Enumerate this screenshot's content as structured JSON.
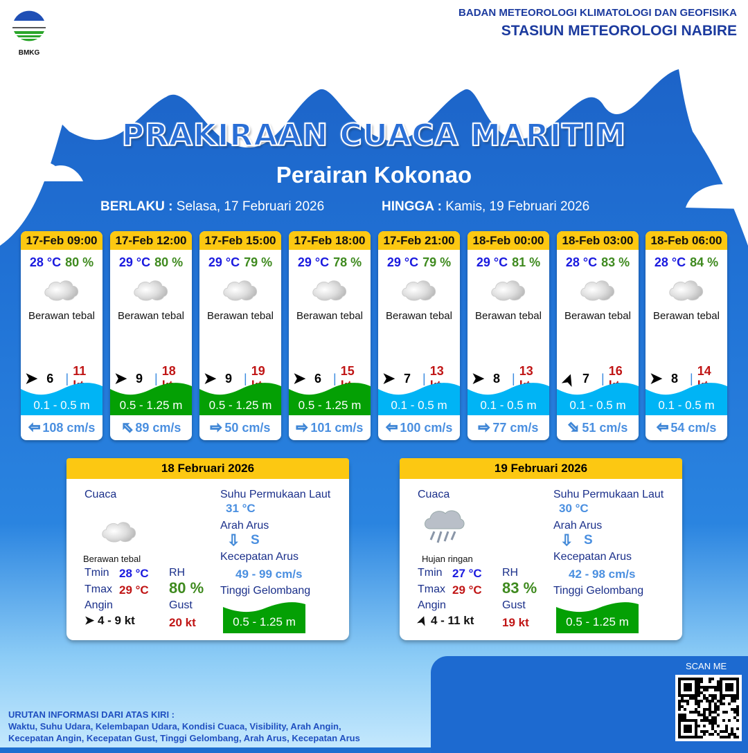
{
  "header": {
    "org": "BADAN METEOROLOGI KLIMATOLOGI DAN GEOFISIKA",
    "station": "STASIUN METEOROLOGI NABIRE",
    "logo_text": "BMKG"
  },
  "title": "PRAKIRAAN CUACA MARITIM",
  "area": "Perairan Kokonao",
  "valid": {
    "from_label": "BERLAKU :",
    "from": "Selasa, 17 Februari 2026",
    "to_label": "HINGGA :",
    "to": "Kamis, 19 Februari 2026"
  },
  "colors": {
    "wave_low": "#00b4f5",
    "wave_mid": "#04a004",
    "header": "#fcc812"
  },
  "forecasts": [
    {
      "time": "17-Feb 09:00",
      "temp": "28 °C",
      "rh": "80 %",
      "cond": "Berawan tebal",
      "wind_icon": "wind-arrow-east-icon",
      "wind_rot": 0,
      "wind": "6",
      "gust": "11 kt",
      "wave": "0.1 - 0.5 m",
      "wave_level": "low",
      "cur_icon": "arrow-left-icon",
      "cur_rot": 180,
      "cur": "108 cm/s"
    },
    {
      "time": "17-Feb 12:00",
      "temp": "29 °C",
      "rh": "80 %",
      "cond": "Berawan tebal",
      "wind_icon": "wind-arrow-east-icon",
      "wind_rot": 0,
      "wind": "9",
      "gust": "18 kt",
      "wave": "0.5 - 1.25 m",
      "wave_level": "mid",
      "cur_icon": "arrow-up-left-icon",
      "cur_rot": -135,
      "cur": "89 cm/s"
    },
    {
      "time": "17-Feb 15:00",
      "temp": "29 °C",
      "rh": "79 %",
      "cond": "Berawan tebal",
      "wind_icon": "wind-arrow-east-icon",
      "wind_rot": 0,
      "wind": "9",
      "gust": "19 kt",
      "wave": "0.5 - 1.25 m",
      "wave_level": "mid",
      "cur_icon": "arrow-right-icon",
      "cur_rot": 0,
      "cur": "50 cm/s"
    },
    {
      "time": "17-Feb 18:00",
      "temp": "29 °C",
      "rh": "78 %",
      "cond": "Berawan tebal",
      "wind_icon": "wind-arrow-east-icon",
      "wind_rot": 0,
      "wind": "6",
      "gust": "15 kt",
      "wave": "0.5 - 1.25 m",
      "wave_level": "mid",
      "cur_icon": "arrow-right-icon",
      "cur_rot": 0,
      "cur": "101 cm/s"
    },
    {
      "time": "17-Feb 21:00",
      "temp": "29 °C",
      "rh": "79 %",
      "cond": "Berawan tebal",
      "wind_icon": "wind-arrow-east-icon",
      "wind_rot": 0,
      "wind": "7",
      "gust": "13 kt",
      "wave": "0.1 - 0.5 m",
      "wave_level": "low",
      "cur_icon": "arrow-left-icon",
      "cur_rot": 180,
      "cur": "100 cm/s"
    },
    {
      "time": "18-Feb 00:00",
      "temp": "29 °C",
      "rh": "81 %",
      "cond": "Berawan tebal",
      "wind_icon": "wind-arrow-east-icon",
      "wind_rot": 0,
      "wind": "8",
      "gust": "13 kt",
      "wave": "0.1 - 0.5 m",
      "wave_level": "low",
      "cur_icon": "arrow-right-icon",
      "cur_rot": 0,
      "cur": "77 cm/s"
    },
    {
      "time": "18-Feb 03:00",
      "temp": "28 °C",
      "rh": "83 %",
      "cond": "Berawan tebal",
      "wind_icon": "wind-arrow-northeast-icon",
      "wind_rot": -70,
      "wind": "7",
      "gust": "16 kt",
      "wave": "0.1 - 0.5 m",
      "wave_level": "low",
      "cur_icon": "arrow-down-right-icon",
      "cur_rot": 45,
      "cur": "51 cm/s"
    },
    {
      "time": "18-Feb 06:00",
      "temp": "28 °C",
      "rh": "84 %",
      "cond": "Berawan tebal",
      "wind_icon": "wind-arrow-east-icon",
      "wind_rot": 0,
      "wind": "8",
      "gust": "14 kt",
      "wave": "0.1 - 0.5 m",
      "wave_level": "low",
      "cur_icon": "arrow-left-icon",
      "cur_rot": 180,
      "cur": "54 cm/s"
    }
  ],
  "labels": {
    "cuaca": "Cuaca",
    "sst": "Suhu Permukaan Laut",
    "arah": "Arah Arus",
    "kec": "Kecepatan Arus",
    "tinggi": "Tinggi Gelombang",
    "tmin": "Tmin",
    "tmax": "Tmax",
    "angin": "Angin",
    "rh": "RH",
    "gust": "Gust"
  },
  "daily": [
    {
      "date": "18 Februari 2026",
      "cond": "Berawan tebal",
      "icon": "cloudy-icon",
      "tmin": "28 °C",
      "tmax": "29 °C",
      "rh": "80 %",
      "wind": "4  - 9 kt",
      "wind_rot": 0,
      "gust": "20 kt",
      "sst": "31 °C",
      "cur_dir": "S",
      "cur_speed": "49 - 99 cm/s",
      "wave": "0.5 - 1.25 m"
    },
    {
      "date": "19 Februari 2026",
      "cond": "Hujan ringan",
      "icon": "light-rain-icon",
      "tmin": "27 °C",
      "tmax": "29 °C",
      "rh": "83 %",
      "wind": "4  - 11 kt",
      "wind_rot": -70,
      "gust": "19 kt",
      "sst": "30 °C",
      "cur_dir": "S",
      "cur_speed": "42 - 98 cm/s",
      "wave": "0.5 - 1.25 m"
    }
  ],
  "footer": {
    "heading": "URUTAN INFORMASI DARI ATAS KIRI :",
    "line1": "Waktu, Suhu Udara, Kelembapan Udara, Kondisi Cuaca, Visibility, Arah Angin,",
    "line2": "Kecepatan Angin, Kecepatan Gust, Tinggi Gelombang, Arah Arus, Kecepatan Arus",
    "scan": "SCAN ME"
  }
}
